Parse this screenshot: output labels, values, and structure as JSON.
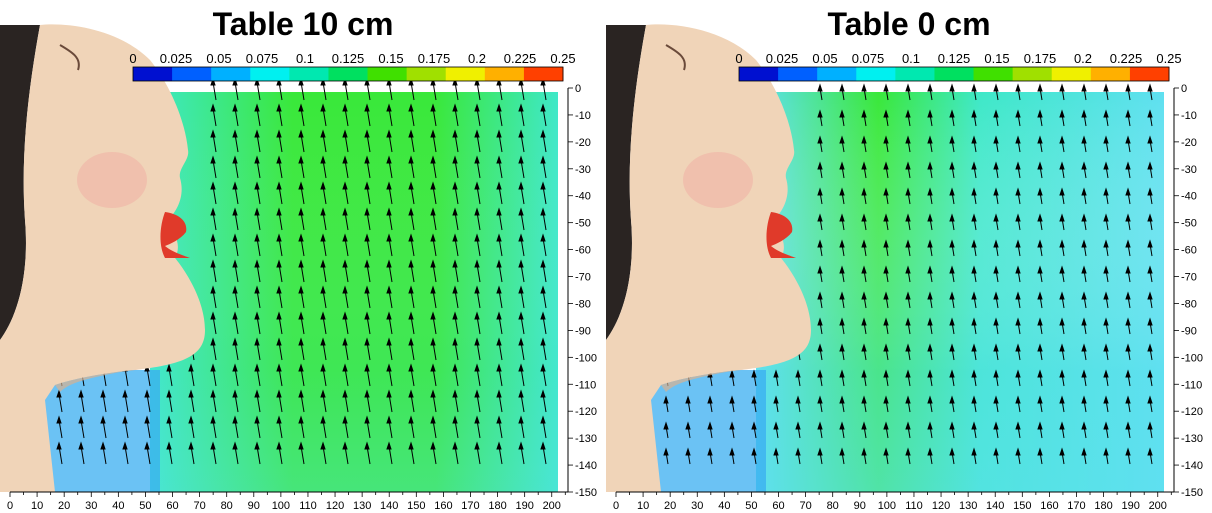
{
  "panels": [
    {
      "title": "Table 10 cm",
      "scenario": "table10"
    },
    {
      "title": "Table 0 cm",
      "scenario": "table0"
    }
  ],
  "colorbar": {
    "ticks": [
      "0",
      "0.025",
      "0.05",
      "0.075",
      "0.1",
      "0.125",
      "0.15",
      "0.175",
      "0.2",
      "0.225",
      "0.25"
    ],
    "colors": [
      "#0010d0",
      "#0060ff",
      "#00b0ff",
      "#00f0f0",
      "#00e8b0",
      "#00e060",
      "#40e000",
      "#a0e000",
      "#f0f000",
      "#ffb000",
      "#ff4000"
    ]
  },
  "x_axis_ticks": [
    "0",
    "10",
    "20",
    "30",
    "40",
    "50",
    "60",
    "70",
    "80",
    "90",
    "100",
    "110",
    "120",
    "130",
    "140",
    "150",
    "160",
    "170",
    "180",
    "190",
    "200"
  ],
  "y_axis_ticks": [
    "0",
    "-10",
    "-20",
    "-30",
    "-40",
    "-50",
    "-60",
    "-70",
    "-80",
    "-90",
    "-100",
    "-110",
    "-120",
    "-130",
    "-140",
    "-150"
  ],
  "colors": {
    "field_green": "#39e83a",
    "field_cyan": "#3ee8c8",
    "field_light_cyan": "#5fe0f0",
    "field_blue": "#3aaef0",
    "skin": "#f0d4b8",
    "skin_shadow": "#d8b090",
    "hair": "#2a2422",
    "lips": "#e03a2a"
  }
}
